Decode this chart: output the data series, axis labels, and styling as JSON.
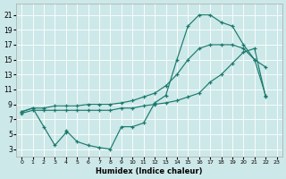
{
  "xlabel": "Humidex (Indice chaleur)",
  "bg_color": "#cde8e8",
  "grid_color": "#ffffff",
  "line_color": "#1a7a6e",
  "xlim": [
    -0.5,
    23.5
  ],
  "ylim": [
    2,
    22.5
  ],
  "xticks": [
    0,
    1,
    2,
    3,
    4,
    5,
    6,
    7,
    8,
    9,
    10,
    11,
    12,
    13,
    14,
    15,
    16,
    17,
    18,
    19,
    20,
    21,
    22,
    23
  ],
  "yticks": [
    3,
    5,
    7,
    9,
    11,
    13,
    15,
    17,
    19,
    21
  ],
  "line1_x": [
    0,
    1,
    2,
    3,
    4,
    4,
    5,
    6,
    7,
    8,
    9,
    10,
    11,
    12,
    13,
    14,
    15,
    16,
    17,
    18,
    19,
    20,
    21,
    22
  ],
  "line1_y": [
    8,
    8.5,
    6,
    3.5,
    5.2,
    5.5,
    4,
    3.5,
    3.2,
    3,
    6,
    6,
    6.5,
    9.2,
    10.2,
    15,
    19.5,
    21,
    21,
    20,
    19.5,
    17,
    15,
    14
  ],
  "line2_x": [
    0,
    1,
    2,
    3,
    4,
    5,
    6,
    7,
    8,
    9,
    10,
    11,
    12,
    13,
    14,
    15,
    16,
    17,
    18,
    19,
    20,
    21,
    22
  ],
  "line2_y": [
    8,
    8.5,
    8.5,
    8.8,
    8.8,
    8.8,
    9,
    9,
    9,
    9.2,
    9.5,
    10,
    10.5,
    11.5,
    13,
    15,
    16.5,
    17,
    17,
    17,
    16.5,
    15,
    10.2
  ],
  "line3_x": [
    0,
    1,
    2,
    3,
    4,
    5,
    6,
    7,
    8,
    9,
    10,
    11,
    12,
    13,
    14,
    15,
    16,
    17,
    18,
    19,
    20,
    21,
    22
  ],
  "line3_y": [
    7.8,
    8.2,
    8.2,
    8.2,
    8.2,
    8.2,
    8.2,
    8.2,
    8.2,
    8.5,
    8.5,
    8.8,
    9,
    9.2,
    9.5,
    10,
    10.5,
    12,
    13,
    14.5,
    16,
    16.5,
    10
  ]
}
